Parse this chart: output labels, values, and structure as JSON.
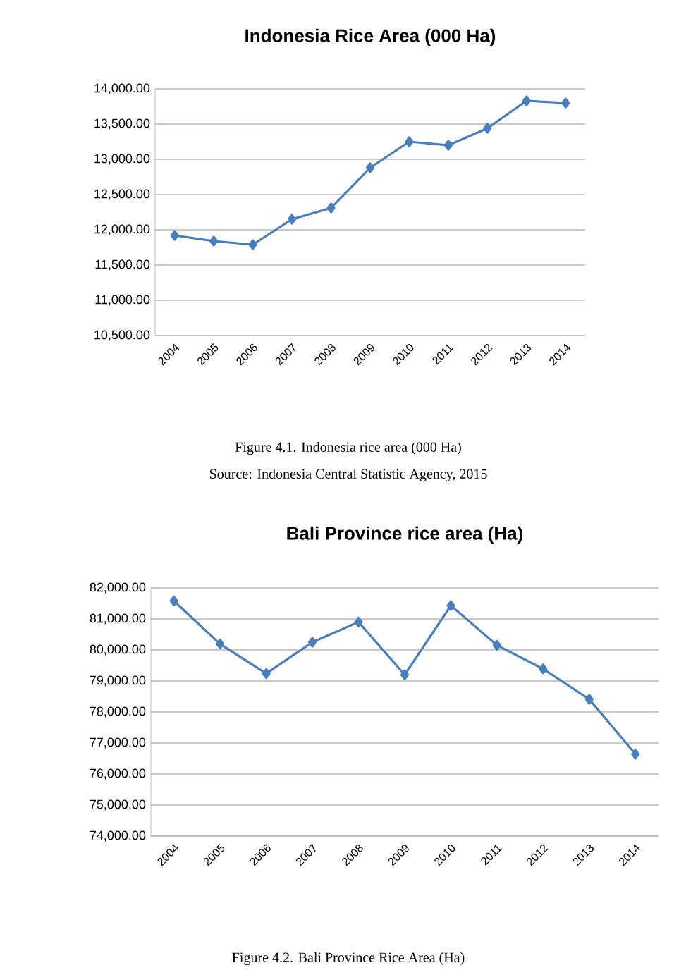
{
  "chart_data": [
    {
      "type": "line",
      "title": "Indonesia Rice Area (000 Ha)",
      "categories": [
        "2004",
        "2005",
        "2006",
        "2007",
        "2008",
        "2009",
        "2010",
        "2011",
        "2012",
        "2013",
        "2014"
      ],
      "values": [
        11920,
        11840,
        11790,
        12150,
        12310,
        12880,
        13250,
        13200,
        13440,
        13830,
        13800
      ],
      "color": "#4a7ebb",
      "marker": "diamond",
      "grid": "y",
      "ylim": [
        10500,
        14000
      ],
      "yticks": [
        {
          "value": 10500,
          "label": "10,500.00"
        },
        {
          "value": 11000,
          "label": "11,000.00"
        },
        {
          "value": 11500,
          "label": "11,500.00"
        },
        {
          "value": 12000,
          "label": "12,000.00"
        },
        {
          "value": 12500,
          "label": "12,500.00"
        },
        {
          "value": 13000,
          "label": "13,000.00"
        },
        {
          "value": 13500,
          "label": "13,500.00"
        },
        {
          "value": 14000,
          "label": "14,000.00"
        }
      ],
      "annotations": [
        "Figure 4.1. Indonesia rice area (000 Ha)",
        "Source: Indonesia Central Statistic Agency, 2015"
      ]
    },
    {
      "type": "line",
      "title": "Bali Province rice area (Ha)",
      "categories": [
        "2004",
        "2005",
        "2006",
        "2007",
        "2008",
        "2009",
        "2010",
        "2011",
        "2012",
        "2013",
        "2014"
      ],
      "values": [
        81580,
        80190,
        79240,
        80250,
        80900,
        79200,
        81430,
        80150,
        79390,
        78410,
        76640
      ],
      "color": "#4a7ebb",
      "marker": "diamond",
      "grid": "y",
      "ylim": [
        74000,
        82000
      ],
      "yticks": [
        {
          "value": 74000,
          "label": "74,000.00"
        },
        {
          "value": 75000,
          "label": "75,000.00"
        },
        {
          "value": 76000,
          "label": "76,000.00"
        },
        {
          "value": 77000,
          "label": "77,000.00"
        },
        {
          "value": 78000,
          "label": "78,000.00"
        },
        {
          "value": 79000,
          "label": "79,000.00"
        },
        {
          "value": 80000,
          "label": "80,000.00"
        },
        {
          "value": 81000,
          "label": "81,000.00"
        },
        {
          "value": 82000,
          "label": "82,000.00"
        }
      ],
      "annotations": [
        "Figure 4.2. Bali Province Rice Area (Ha)"
      ]
    }
  ]
}
